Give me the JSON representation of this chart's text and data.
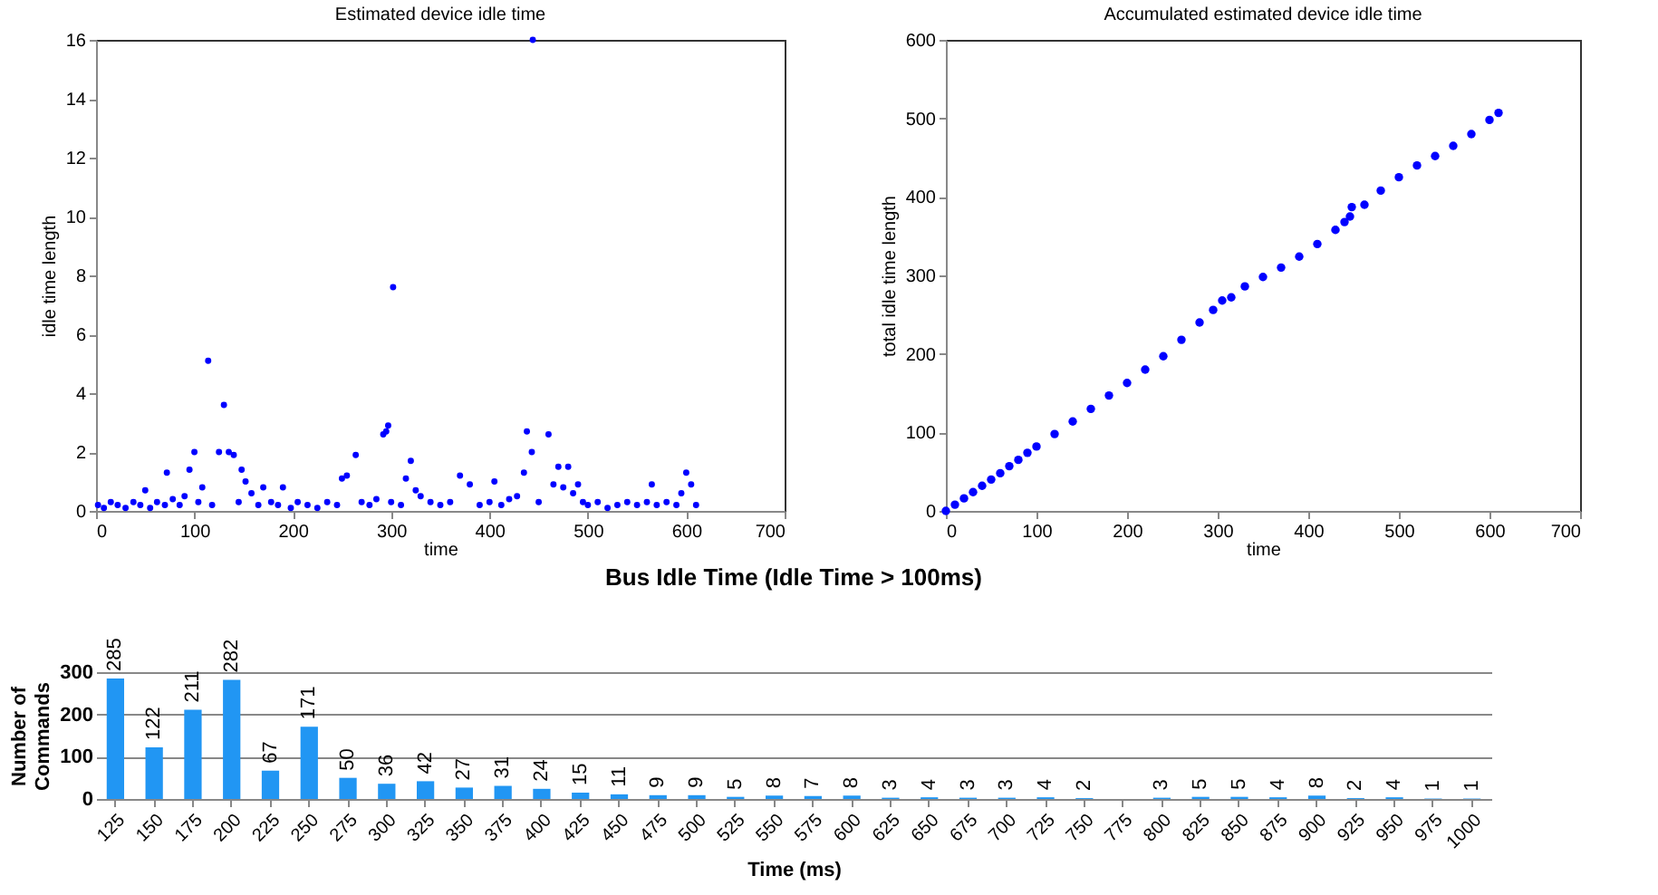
{
  "chart_data": [
    {
      "type": "scatter",
      "title": "Estimated device idle time",
      "xlabel": "time",
      "ylabel": "idle time length",
      "marker": "circle",
      "grid": false,
      "legend": false,
      "xlim": [
        0,
        700
      ],
      "ylim": [
        0,
        16
      ],
      "xticks": [
        0,
        100,
        200,
        300,
        400,
        500,
        600,
        700
      ],
      "yticks": [
        0,
        2,
        4,
        6,
        8,
        10,
        12,
        14,
        16
      ],
      "series": [
        {
          "color": "#0000ff",
          "x": [
            2,
            8,
            15,
            22,
            30,
            38,
            45,
            50,
            55,
            62,
            70,
            72,
            78,
            85,
            90,
            95,
            100,
            104,
            108,
            114,
            118,
            125,
            130,
            135,
            140,
            145,
            148,
            152,
            158,
            165,
            170,
            178,
            185,
            190,
            198,
            205,
            215,
            225,
            235,
            245,
            250,
            255,
            264,
            270,
            278,
            285,
            292,
            295,
            297,
            300,
            302,
            310,
            315,
            320,
            325,
            330,
            340,
            350,
            360,
            370,
            380,
            390,
            400,
            405,
            412,
            420,
            428,
            435,
            438,
            443,
            444,
            450,
            460,
            465,
            470,
            475,
            480,
            485,
            490,
            495,
            500,
            510,
            520,
            530,
            540,
            550,
            560,
            565,
            570,
            580,
            590,
            595,
            600,
            605,
            610
          ],
          "values": [
            0.2,
            0.1,
            0.3,
            0.2,
            0.1,
            0.3,
            0.2,
            0.7,
            0.1,
            0.3,
            0.2,
            1.3,
            0.4,
            0.2,
            0.5,
            1.4,
            2.0,
            0.3,
            0.8,
            5.1,
            0.2,
            2.0,
            3.6,
            2.0,
            1.9,
            0.3,
            1.4,
            1.0,
            0.6,
            0.2,
            0.8,
            0.3,
            0.2,
            0.8,
            0.1,
            0.3,
            0.2,
            0.1,
            0.3,
            0.2,
            1.1,
            1.2,
            1.9,
            0.3,
            0.2,
            0.4,
            2.6,
            2.7,
            2.9,
            0.3,
            7.6,
            0.2,
            1.1,
            1.7,
            0.7,
            0.5,
            0.3,
            0.2,
            0.3,
            1.2,
            0.9,
            0.2,
            0.3,
            1.0,
            0.2,
            0.4,
            0.5,
            1.3,
            2.7,
            2.0,
            16.0,
            0.3,
            2.6,
            0.9,
            1.5,
            0.8,
            1.5,
            0.6,
            0.9,
            0.3,
            0.2,
            0.3,
            0.1,
            0.2,
            0.3,
            0.2,
            0.3,
            0.9,
            0.2,
            0.3,
            0.2,
            0.6,
            1.3,
            0.9,
            0.2
          ]
        }
      ]
    },
    {
      "type": "scatter",
      "title": "Accumulated estimated device idle time",
      "xlabel": "time",
      "ylabel": "total idle time length",
      "marker": "circle",
      "grid": false,
      "legend": false,
      "xlim": [
        0,
        700
      ],
      "ylim": [
        0,
        600
      ],
      "xticks": [
        0,
        100,
        200,
        300,
        400,
        500,
        600,
        700
      ],
      "yticks": [
        0,
        100,
        200,
        300,
        400,
        500,
        600
      ],
      "series": [
        {
          "color": "#0000ff",
          "x": [
            0,
            10,
            20,
            30,
            40,
            50,
            60,
            70,
            80,
            90,
            100,
            120,
            140,
            160,
            180,
            200,
            220,
            240,
            260,
            280,
            295,
            305,
            315,
            330,
            350,
            370,
            390,
            410,
            430,
            440,
            446,
            448,
            462,
            480,
            500,
            520,
            540,
            560,
            580,
            600,
            610
          ],
          "values": [
            0,
            8,
            16,
            24,
            32,
            40,
            48,
            57,
            65,
            74,
            82,
            98,
            114,
            130,
            147,
            163,
            180,
            197,
            218,
            240,
            256,
            268,
            272,
            286,
            298,
            310,
            324,
            340,
            358,
            368,
            375,
            387,
            390,
            408,
            425,
            440,
            452,
            465,
            480,
            498,
            507
          ]
        }
      ]
    },
    {
      "type": "bar",
      "title": "Bus Idle Time (Idle Time > 100ms)",
      "xlabel": "Time (ms)",
      "ylabel": "Number of Commands",
      "grid": "y",
      "legend": false,
      "data_labels": true,
      "ylim": [
        0,
        300
      ],
      "yticks": [
        0,
        100,
        200,
        300
      ],
      "categories": [
        "125",
        "150",
        "175",
        "200",
        "225",
        "250",
        "275",
        "300",
        "325",
        "350",
        "375",
        "400",
        "425",
        "450",
        "475",
        "500",
        "525",
        "550",
        "575",
        "600",
        "625",
        "650",
        "675",
        "700",
        "725",
        "750",
        "775",
        "800",
        "825",
        "850",
        "875",
        "900",
        "925",
        "950",
        "975",
        "1000"
      ],
      "series": [
        {
          "color": "#2196f3",
          "values": [
            285,
            122,
            211,
            282,
            67,
            171,
            50,
            36,
            42,
            27,
            31,
            24,
            15,
            11,
            9,
            9,
            5,
            8,
            7,
            8,
            3,
            4,
            3,
            3,
            4,
            2,
            null,
            3,
            5,
            5,
            4,
            8,
            2,
            4,
            1,
            1
          ]
        }
      ]
    }
  ]
}
